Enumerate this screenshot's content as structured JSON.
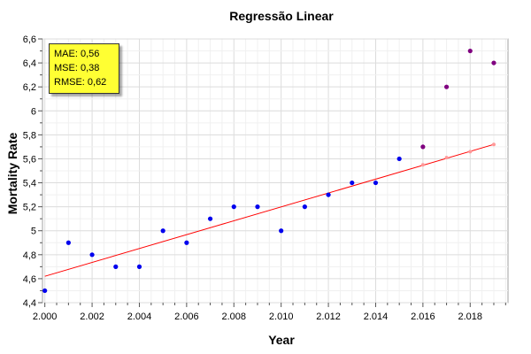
{
  "chart_data": {
    "type": "scatter",
    "title": "Regressão Linear",
    "xlabel": "Year",
    "ylabel": "Mortality Rate",
    "xlim": [
      1999.9,
      2019.6
    ],
    "ylim": [
      4.4,
      6.6
    ],
    "x_ticks": [
      "2.000",
      "2.002",
      "2.004",
      "2.006",
      "2.008",
      "2.010",
      "2.012",
      "2.014",
      "2.016",
      "2.018"
    ],
    "y_ticks": [
      "4,4",
      "4,6",
      "4,8",
      "5",
      "5,2",
      "5,4",
      "5,6",
      "5,8",
      "6",
      "6,2",
      "6,4",
      "6,6"
    ],
    "grid": true,
    "series": [
      {
        "color": "#0000ee",
        "points": [
          [
            2000,
            4.5
          ],
          [
            2001,
            4.9
          ],
          [
            2002,
            4.8
          ],
          [
            2003,
            4.7
          ],
          [
            2004,
            4.7
          ],
          [
            2005,
            5.0
          ],
          [
            2006,
            4.9
          ],
          [
            2007,
            5.1
          ],
          [
            2008,
            5.2
          ],
          [
            2009,
            5.2
          ],
          [
            2010,
            5.0
          ],
          [
            2011,
            5.2
          ],
          [
            2012,
            5.3
          ],
          [
            2013,
            5.4
          ],
          [
            2014,
            5.4
          ],
          [
            2015,
            5.6
          ]
        ]
      },
      {
        "color": "#800080",
        "points": [
          [
            2016,
            5.7
          ],
          [
            2017,
            6.2
          ],
          [
            2018,
            6.5
          ],
          [
            2019,
            6.4
          ]
        ]
      },
      {
        "color": "#ff9999",
        "points": [
          [
            2016,
            5.55
          ],
          [
            2017,
            5.61
          ],
          [
            2018,
            5.66
          ],
          [
            2019,
            5.72
          ]
        ]
      }
    ],
    "regression_line": {
      "color": "#ff0000",
      "start": [
        2000,
        4.62
      ],
      "end": [
        2019,
        5.72
      ]
    },
    "metrics": {
      "mae": "MAE: 0,56",
      "mse": "MSE: 0,38",
      "rmse": "RMSE: 0,62"
    },
    "metrics_box_color": "#ffff33"
  }
}
